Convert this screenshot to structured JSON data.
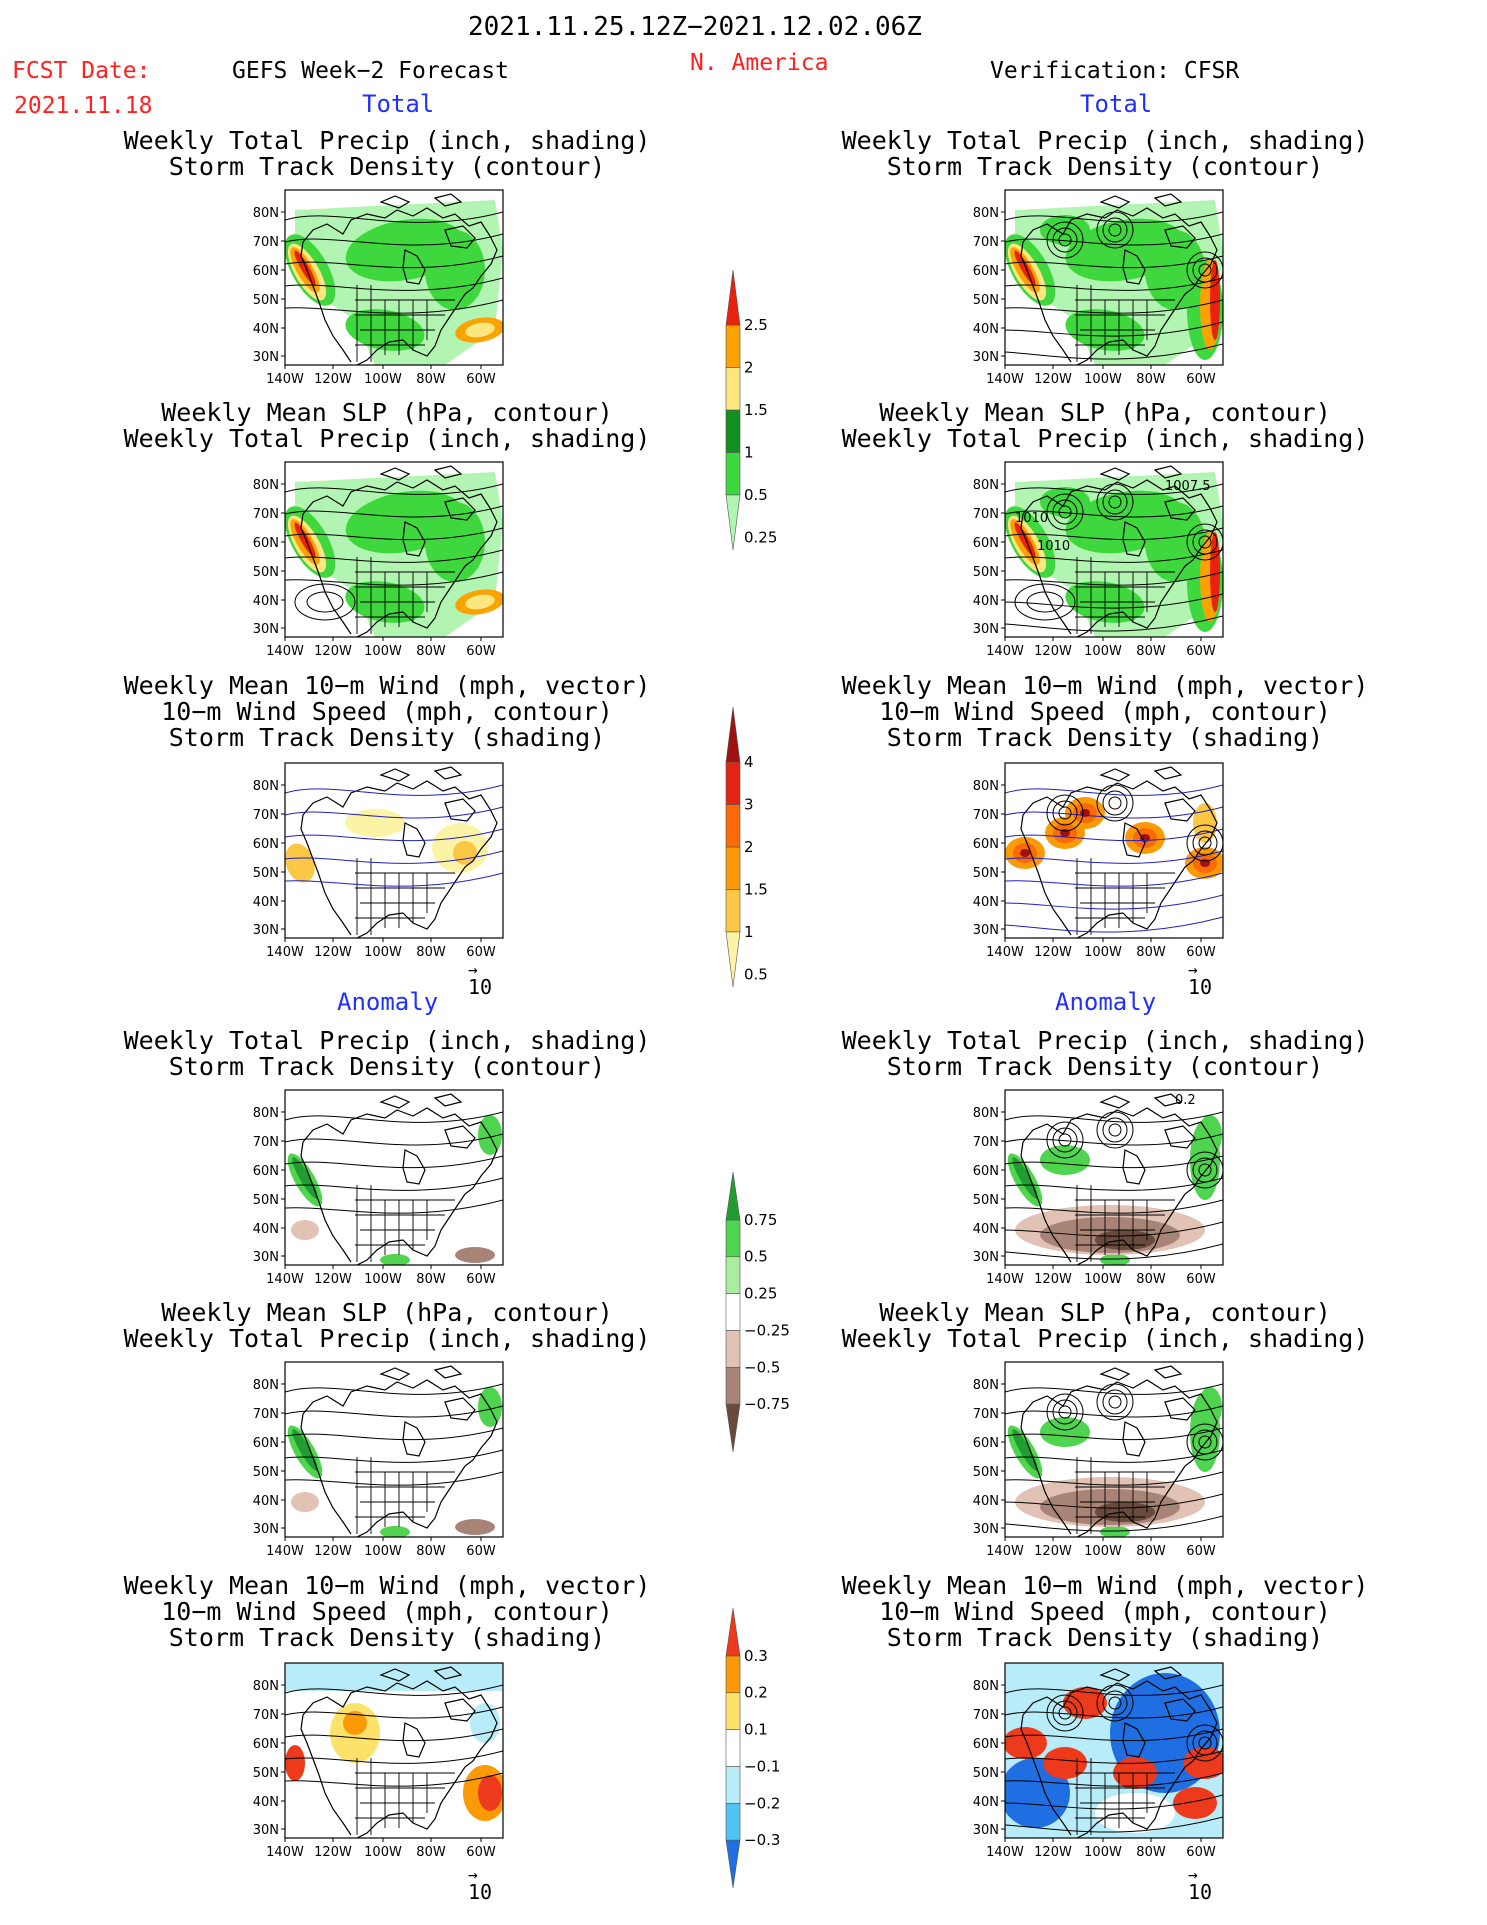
{
  "header": {
    "date_range": "2021.11.25.12Z−2021.12.02.06Z",
    "fcst_label": "FCST Date:",
    "fcst_date": "2021.11.18",
    "forecast_title": "GEFS Week−2 Forecast",
    "region": "N. America",
    "verification": "Verification: CFSR"
  },
  "sections": {
    "total": "Total",
    "anomaly": "Anomaly"
  },
  "panel_titles": {
    "precip_track": [
      "Weekly Total Precip (inch, shading)",
      "Storm Track Density (contour)"
    ],
    "slp_precip": [
      "Weekly Mean SLP (hPa, contour)",
      "Weekly Total Precip (inch, shading)"
    ],
    "wind_track": [
      "Weekly Mean 10−m Wind (mph, vector)",
      "10−m Wind Speed (mph, contour)",
      "Storm Track Density (shading)"
    ]
  },
  "axes": {
    "lat_labels": [
      "80N",
      "70N",
      "60N",
      "50N",
      "40N",
      "30N"
    ],
    "lon_labels": [
      "140W",
      "120W",
      "100W",
      "80W",
      "60W"
    ]
  },
  "vector_ref": "10",
  "contour_labels": {
    "slp_verif": [
      "1007.5",
      "1010",
      "1010"
    ],
    "precip_anom_verif": [
      "0.2"
    ]
  },
  "colorbars": [
    {
      "id": "total-precip",
      "labels": [
        "2.5",
        "2",
        "1.5",
        "1",
        "0.5",
        "0.25"
      ],
      "colors": [
        "#e8220c",
        "#f9a200",
        "#fce680",
        "#118f20",
        "#3ed83e",
        "#b2f5b2"
      ]
    },
    {
      "id": "total-track",
      "labels": [
        "4",
        "3",
        "2",
        "1.5",
        "1",
        "0.5"
      ],
      "colors": [
        "#a01010",
        "#e52312",
        "#fa6a06",
        "#fb9a04",
        "#fbc745",
        "#fdf3a6"
      ]
    },
    {
      "id": "anom-precip",
      "labels": [
        "0.75",
        "0.5",
        "0.25",
        "−0.25",
        "−0.5",
        "−0.75"
      ],
      "colors": [
        "#1f9d30",
        "#4fd44f",
        "#a9ee9e",
        "#ffffff",
        "#e1c2b5",
        "#a78475",
        "#6a4a3c"
      ]
    },
    {
      "id": "anom-track",
      "labels": [
        "0.3",
        "0.2",
        "0.1",
        "−0.1",
        "−0.2",
        "−0.3"
      ],
      "colors": [
        "#ee3a1c",
        "#fb9a04",
        "#fde26a",
        "#ffffff",
        "#b8ecf8",
        "#4fc3f2",
        "#1f6fe3"
      ]
    }
  ]
}
